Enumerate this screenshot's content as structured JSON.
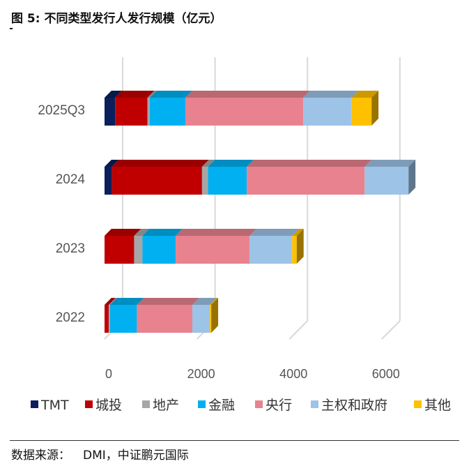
{
  "title": "图 5: 不同类型发行人发行规模（亿元）",
  "source": {
    "label": "数据来源：",
    "text": "DMI，中证鹏元国际"
  },
  "chart_data": {
    "type": "bar",
    "orientation": "horizontal",
    "stacked": true,
    "style": "3d",
    "categories": [
      "2025Q3",
      "2024",
      "2023",
      "2022"
    ],
    "x_ticks": [
      0,
      2000,
      4000,
      6000
    ],
    "xlim": [
      0,
      6400
    ],
    "grid": true,
    "legend_position": "bottom",
    "series": [
      {
        "name": "TMT",
        "color": "#0b1f5c",
        "values": [
          230,
          160,
          0,
          0
        ]
      },
      {
        "name": "城投",
        "color": "#c00000",
        "values": [
          700,
          1950,
          640,
          90
        ]
      },
      {
        "name": "地产",
        "color": "#a6a6a6",
        "values": [
          50,
          130,
          180,
          30
        ]
      },
      {
        "name": "金融",
        "color": "#00b0f0",
        "values": [
          770,
          840,
          720,
          580
        ]
      },
      {
        "name": "央行",
        "color": "#e8828f",
        "values": [
          2550,
          2550,
          1600,
          1200
        ]
      },
      {
        "name": "主权和政府",
        "color": "#9dc3e6",
        "values": [
          1050,
          950,
          920,
          380
        ]
      },
      {
        "name": "其他",
        "color": "#ffc000",
        "values": [
          430,
          0,
          100,
          30
        ]
      }
    ]
  }
}
